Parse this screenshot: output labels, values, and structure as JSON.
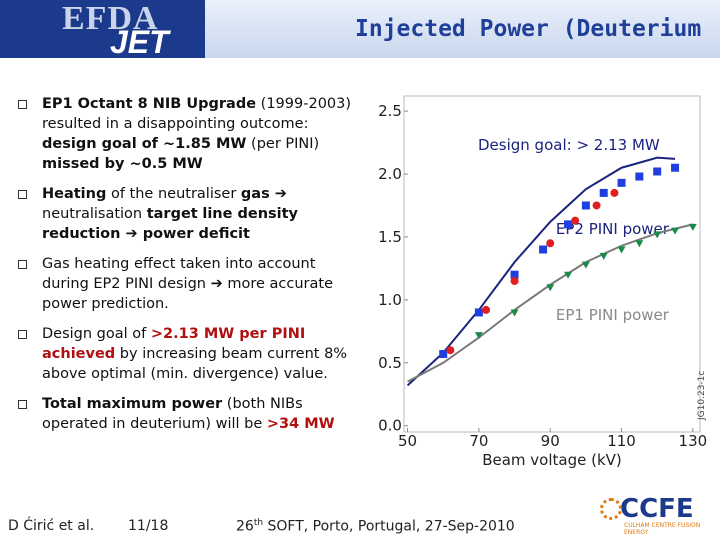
{
  "header": {
    "logo": [
      "EFDA",
      "JET"
    ],
    "title": "Injected Power (Deuterium"
  },
  "bullets": [
    {
      "runs": [
        {
          "text": "EP1 Octant 8 NIB Upgrade",
          "style": "bold"
        },
        {
          "text": " (1999-2003) resulted in a disappointing outcome: ",
          "style": "normal"
        },
        {
          "text": "design goal of ~1.85 MW",
          "style": "bold"
        },
        {
          "text": " (per PINI) ",
          "style": "normal"
        },
        {
          "text": "missed by ~0.5 MW",
          "style": "bold"
        }
      ]
    },
    {
      "runs": [
        {
          "text": "Heating",
          "style": "bold"
        },
        {
          "text": " of the neutraliser ",
          "style": "normal"
        },
        {
          "text": "gas ➔",
          "style": "bold"
        },
        {
          "text": " neutralisation ",
          "style": "normal"
        },
        {
          "text": "target",
          "style": "bold"
        },
        {
          "text": " ",
          "style": "normal"
        },
        {
          "text": "line density reduction ➔ power deficit",
          "style": "bold"
        }
      ]
    },
    {
      "runs": [
        {
          "text": "Gas heating effect taken into account during EP2 PINI design ➔ more accurate power prediction.",
          "style": "normal"
        }
      ]
    },
    {
      "runs": [
        {
          "text": "Design goal of ",
          "style": "normal"
        },
        {
          "text": ">2.13 MW per PINI achieved",
          "style": "accent"
        },
        {
          "text": " by increasing beam current 8% above optimal (min. divergence) value.",
          "style": "normal"
        }
      ]
    },
    {
      "runs": [
        {
          "text": "Total maximum power",
          "style": "bold"
        },
        {
          "text": " (both NIBs operated in deuterium) will be ",
          "style": "normal"
        },
        {
          "text": ">34 MW",
          "style": "accent"
        }
      ]
    }
  ],
  "footer": {
    "author": "D Ćirić et al.",
    "page": "11/18",
    "conference": [
      "26",
      "th",
      " SOFT, Porto, Portugal, 27-Sep-2010"
    ],
    "logo": [
      "CCFE",
      "CULHAM CENTRE",
      "FUSION ENERGY"
    ]
  },
  "chart_data": {
    "type": "line",
    "x_label": "Beam voltage (kV)",
    "annotations": [
      "Design goal: > 2.13 MW",
      "JG10.23-1c"
    ],
    "xlim": [
      49,
      132
    ],
    "xticks": [
      50,
      70,
      90,
      110,
      130
    ],
    "ylim": [
      -0.05,
      2.62
    ],
    "yticks": [
      {
        "value": 0,
        "label": "0.0"
      },
      {
        "value": 0.5,
        "label": "0.5"
      },
      {
        "value": 1,
        "label": "1.0"
      },
      {
        "value": 1.5,
        "label": "1.5"
      },
      {
        "value": 2,
        "label": "2.0"
      },
      {
        "value": 2.5,
        "label": "2.5"
      }
    ],
    "series": [
      {
        "name": "EP2 PINI power",
        "color": "#1a237e",
        "x": [
          50,
          60,
          70,
          80,
          90,
          100,
          110,
          120,
          125
        ],
        "values": [
          0.32,
          0.58,
          0.92,
          1.3,
          1.62,
          1.88,
          2.05,
          2.13,
          2.12
        ]
      },
      {
        "name": "EP1 PINI power",
        "color": "#7a7a7a",
        "x": [
          50,
          60,
          70,
          80,
          90,
          100,
          110,
          120,
          130
        ],
        "values": [
          0.35,
          0.5,
          0.7,
          0.92,
          1.12,
          1.3,
          1.43,
          1.53,
          1.6
        ]
      }
    ],
    "points": [
      {
        "marker": "square",
        "color": "#1f3fe0",
        "x": [
          60,
          70,
          80,
          88,
          95,
          100,
          105,
          110,
          115,
          120,
          125
        ],
        "values": [
          0.57,
          0.9,
          1.2,
          1.4,
          1.6,
          1.75,
          1.85,
          1.93,
          1.98,
          2.02,
          2.05
        ]
      },
      {
        "marker": "circle",
        "color": "#e02020",
        "x": [
          62,
          72,
          80,
          90,
          97,
          103,
          108
        ],
        "values": [
          0.6,
          0.92,
          1.15,
          1.45,
          1.63,
          1.75,
          1.85
        ]
      },
      {
        "marker": "triangle",
        "color": "#1a8a4a",
        "x": [
          70,
          80,
          90,
          95,
          100,
          105,
          110,
          115,
          120,
          125,
          130
        ],
        "values": [
          0.72,
          0.9,
          1.1,
          1.2,
          1.28,
          1.35,
          1.4,
          1.45,
          1.52,
          1.55,
          1.58
        ]
      }
    ]
  }
}
